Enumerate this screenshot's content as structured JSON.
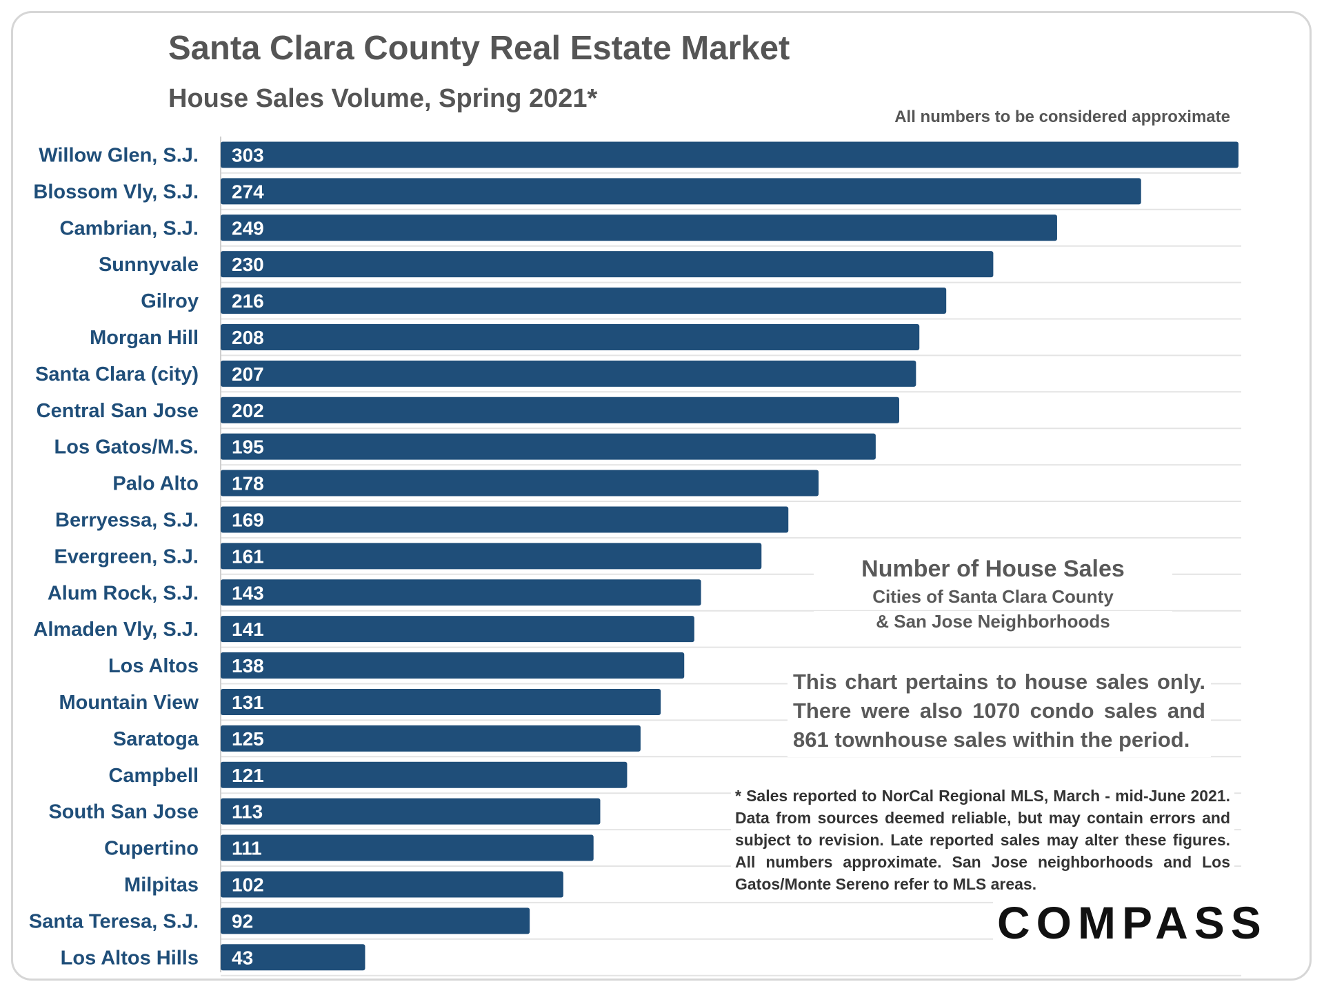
{
  "header": {
    "title": "Santa Clara County Real Estate Market",
    "subtitle": "House Sales Volume, Spring 2021*",
    "approx_note": "All numbers to be considered approximate"
  },
  "info_box": {
    "title": "Number of House Sales",
    "line1": "Cities of Santa Clara County",
    "line2": "& San Jose Neighborhoods"
  },
  "note": "This chart pertains to house sales only. There were also 1070 condo sales and 861 townhouse sales within the period.",
  "footnote": "* Sales reported to NorCal Regional MLS, March - mid-June 2021. Data from sources deemed reliable, but may contain errors and subject to revision. Late reported sales may alter these figures. All numbers approximate. San Jose neighborhoods and Los Gatos/Monte Sereno refer to MLS areas.",
  "logo": "COMPASS",
  "colors": {
    "bar": "#1f4e79",
    "category_label": "#1f4e79",
    "value_label": "#ffffff",
    "gridline": "#e4e4e4",
    "title": "#555555"
  },
  "chart_data": {
    "type": "bar",
    "orientation": "horizontal",
    "title": "House Sales Volume, Spring 2021*",
    "categories": [
      "Willow Glen, S.J.",
      "Blossom Vly, S.J.",
      "Cambrian, S.J.",
      "Sunnyvale",
      "Gilroy",
      "Morgan Hill",
      "Santa Clara (city)",
      "Central San Jose",
      "Los Gatos/M.S.",
      "Palo Alto",
      "Berryessa, S.J.",
      "Evergreen, S.J.",
      "Alum Rock, S.J.",
      "Almaden Vly, S.J.",
      "Los Altos",
      "Mountain View",
      "Saratoga",
      "Campbell",
      "South San Jose",
      "Cupertino",
      "Milpitas",
      "Santa Teresa, S.J.",
      "Los Altos Hills"
    ],
    "values": [
      303,
      274,
      249,
      230,
      216,
      208,
      207,
      202,
      195,
      178,
      169,
      161,
      143,
      141,
      138,
      131,
      125,
      121,
      113,
      111,
      102,
      92,
      43
    ],
    "xlim": [
      0,
      303
    ],
    "xlabel": "",
    "ylabel": "",
    "grid": true
  }
}
